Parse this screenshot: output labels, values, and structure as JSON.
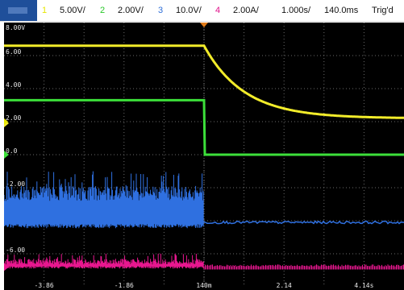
{
  "toolbar": {
    "channels": [
      {
        "num": "1",
        "scale": "5.00V/",
        "color": "#e6e600"
      },
      {
        "num": "2",
        "scale": "2.00V/",
        "color": "#28c828"
      },
      {
        "num": "3",
        "scale": "10.0V/",
        "color": "#2f6fd8"
      },
      {
        "num": "4",
        "scale": "2.00A/",
        "color": "#e0108a"
      }
    ],
    "timebase": "1.000s/",
    "delay": "140.0ms",
    "status": "Trig'd"
  },
  "colors": {
    "ch1": "#f2ec2a",
    "ch2": "#3ce03a",
    "ch3": "#2f70e0",
    "ch4": "#e8178f",
    "grid": "#6a6a6a",
    "label": "#e8e8e8"
  },
  "graticule": {
    "y_labels": [
      "8.00V",
      "6.00",
      "4.00",
      "2.00",
      "0.0",
      "-2.00",
      "-4.00",
      "-6.00"
    ],
    "x_labels": [
      "-3.86",
      "-1.86",
      "140m",
      "2.14",
      "4.14s"
    ]
  },
  "chart_data": {
    "type": "line",
    "xlabel": "",
    "ylabel": "",
    "xlim": [
      -4.86,
      5.14
    ],
    "ylim": [
      -8,
      8
    ],
    "x_ticks": [
      -3.86,
      -1.86,
      0.14,
      2.14,
      4.14
    ],
    "y_ticks": [
      8,
      6,
      4,
      2,
      0,
      -2,
      -4,
      -6
    ],
    "grid": true,
    "series": [
      {
        "channel": "1",
        "kind": "step_decay",
        "before": 6.6,
        "peak": 6.6,
        "final": 2.2,
        "step_x": 0.14,
        "tau": 1.0,
        "noise": 0
      },
      {
        "channel": "2",
        "kind": "step",
        "before": 3.3,
        "after": 0.0,
        "step_x": 0.14,
        "noise": 0
      },
      {
        "channel": "3",
        "kind": "noisy_step",
        "before_low": -4.2,
        "before_high": -1.9,
        "after": -4.1,
        "step_x": 0.14
      },
      {
        "channel": "4",
        "kind": "noisy_step",
        "before_low": -6.9,
        "before_high": -6.3,
        "after": -6.85,
        "step_x": 0.14
      }
    ]
  }
}
